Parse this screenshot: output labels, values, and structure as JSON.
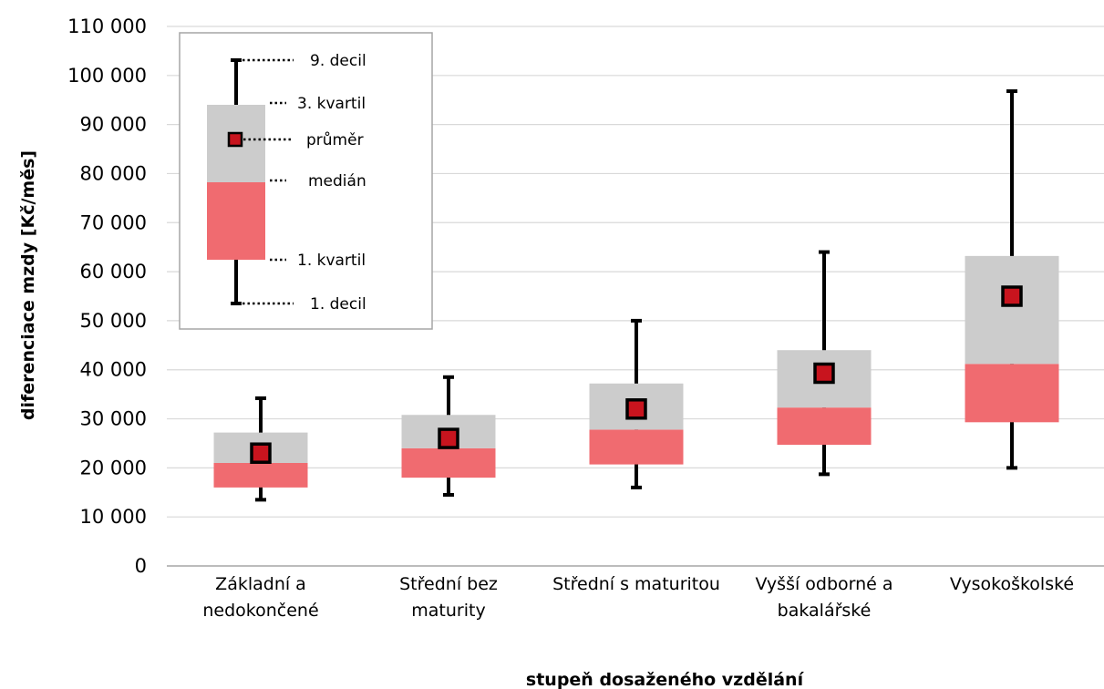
{
  "chart_data": {
    "type": "box",
    "xlabel": "stupeň dosaženého vzdělání",
    "ylabel": "diferenciace mzdy [Kč/měs]",
    "ylim": [
      0,
      110000
    ],
    "yticks": [
      0,
      10000,
      20000,
      30000,
      40000,
      50000,
      60000,
      70000,
      80000,
      90000,
      100000,
      110000
    ],
    "ytick_labels": [
      "0",
      "10 000",
      "20 000",
      "30 000",
      "40 000",
      "50 000",
      "60 000",
      "70 000",
      "80 000",
      "90 000",
      "100 000",
      "110 000"
    ],
    "grid": "horizontal",
    "categories": [
      [
        "Základní a",
        "nedokončené"
      ],
      [
        "Střední bez",
        "maturity"
      ],
      [
        "Střední s maturitou"
      ],
      [
        "Vyšší odborné a",
        "bakalářské"
      ],
      [
        "Vysokoškolské"
      ]
    ],
    "boxes": [
      {
        "d1": 13500,
        "q1": 16000,
        "median": 21000,
        "q3": 27200,
        "d9": 34200,
        "mean": 23000
      },
      {
        "d1": 14500,
        "q1": 18000,
        "median": 24000,
        "q3": 30800,
        "d9": 38500,
        "mean": 26000
      },
      {
        "d1": 16000,
        "q1": 20700,
        "median": 27800,
        "q3": 37200,
        "d9": 50000,
        "mean": 32000
      },
      {
        "d1": 18700,
        "q1": 24700,
        "median": 32300,
        "q3": 44000,
        "d9": 64000,
        "mean": 39300
      },
      {
        "d1": 20000,
        "q1": 29300,
        "median": 41200,
        "q3": 63200,
        "d9": 96800,
        "mean": 55000
      }
    ],
    "colors": {
      "lower_box": "#f06b70",
      "upper_box": "#cccccc",
      "whisker": "#000000",
      "mean_marker": "#c8141e",
      "grid": "#d9d9d9"
    },
    "legend": {
      "placement": "top-left",
      "items": [
        "9. decil",
        "3. kvartil",
        "průměr",
        "medián",
        "1. kvartil",
        "1. decil"
      ]
    }
  }
}
